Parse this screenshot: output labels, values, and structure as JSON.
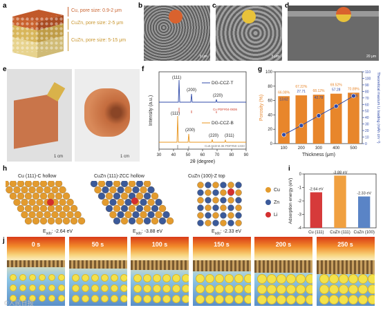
{
  "panels": {
    "a": "a",
    "b": "b",
    "c": "c",
    "d": "d",
    "e": "e",
    "f": "f",
    "g": "g",
    "h": "h",
    "i": "i",
    "j": "j"
  },
  "panel_a": {
    "layers": [
      {
        "label": "Cu, pore size: 0.9-2 μm",
        "color": "#c9622e"
      },
      {
        "label": "CuZn, pore size: 2-5 μm",
        "color": "#d8b65a"
      },
      {
        "label": "CuZn, pore size: 5-15 μm",
        "color": "#e7d38e"
      }
    ]
  },
  "sem": {
    "scale_b": "5 μm",
    "scale_c": "5 μm",
    "scale_d": "20 μm"
  },
  "photos": {
    "scale_1": "1 cm",
    "scale_2": "1 cm"
  },
  "xrd": {
    "ylabel": "Intensity (a.u.)",
    "xlabel": "2θ (degree)",
    "xticks": [
      "30",
      "40",
      "50",
      "60",
      "70",
      "80",
      "90"
    ],
    "series": [
      {
        "name": "DG-CCZ-T",
        "color": "#2f4aa8",
        "peaks": [
          "(111)",
          "(200)",
          "(220)"
        ],
        "ref": "Cu PDF#04-0836",
        "ref_color": "#d13d2a"
      },
      {
        "name": "DG-CCZ-B",
        "color": "#e8951e",
        "peaks": [
          "(111)",
          "(200)",
          "(220)",
          "(311)"
        ],
        "ref": "Cu0.64Zn0.36 PDF#50-1333",
        "ref_color": "#777777"
      }
    ]
  },
  "chart_data": {
    "type": "bar",
    "xlabel": "Thickness (μm)",
    "ylabel": "Porosity (%)",
    "y2label": "Theoretical maxium Li loading (mAh cm⁻²)",
    "categories": [
      "100",
      "200",
      "300",
      "400",
      "500"
    ],
    "ylim": [
      0,
      100
    ],
    "y2lim": [
      0,
      110
    ],
    "yticks": [
      "0",
      "20",
      "40",
      "60",
      "80",
      "100"
    ],
    "y2ticks": [
      "0",
      "10",
      "20",
      "30",
      "40",
      "50",
      "60",
      "70",
      "80",
      "90",
      "100",
      "110"
    ],
    "porosity_labels": [
      "66.08%",
      "67.22%",
      "68.12%",
      "69.52%",
      "70.89%"
    ],
    "porosity": [
      66.08,
      67.22,
      68.12,
      69.52,
      70.89
    ],
    "loading_labels": [
      "13.62",
      "27.71",
      "42.78",
      "57.28",
      "73.06"
    ],
    "loading": [
      13.62,
      27.71,
      42.78,
      57.28,
      73.06
    ],
    "bar_color": "#e8862b",
    "line_color": "#2f4aa8"
  },
  "panel_h": {
    "titles": [
      "Cu (111)-C hollow",
      "CuZn (111)-ZCC hollow",
      "CuZn (100)-Z top"
    ],
    "energies": [
      "E",
      "E",
      "E"
    ],
    "sub": "ads",
    "values": [
      ": -2.64 eV",
      ": -3.88 eV",
      ": -2.33 eV"
    ],
    "legend": [
      {
        "label": "Cu",
        "color": "#e39b2e"
      },
      {
        "label": "Zn",
        "color": "#3b5a9a"
      },
      {
        "label": "Li",
        "color": "#d32f2f"
      }
    ]
  },
  "panel_i": {
    "ylabel": "Adsorption energy (eV)",
    "yticks": [
      "0",
      "-1",
      "-2",
      "-3",
      "-4"
    ],
    "categories": [
      "Cu (111)",
      "CuZn (111)",
      "CuZn (100)"
    ],
    "values": [
      -2.64,
      -3.88,
      -2.33
    ],
    "labels": [
      "-2.64 eV",
      "-3.88 eV",
      "-2.33 eV"
    ],
    "colors": [
      "#d63a3a",
      "#f0a040",
      "#5a84c6"
    ]
  },
  "panel_j": {
    "times": [
      "0 s",
      "50 s",
      "100 s",
      "150 s",
      "200 s",
      "250 s"
    ]
  },
  "watermark": "©人民日报"
}
